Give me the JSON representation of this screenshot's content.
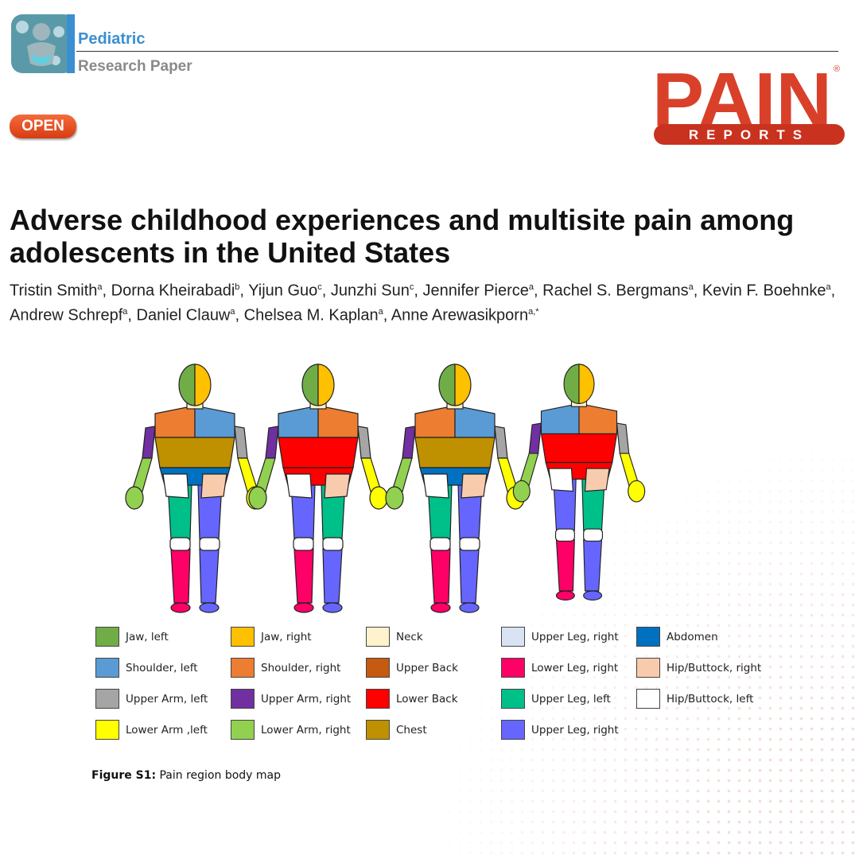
{
  "header": {
    "journal_name": "Pediatric",
    "journal_subtitle": "Research Paper",
    "open_badge": "OPEN",
    "logo": {
      "word": "PAIN",
      "ribbon": "REPORTS",
      "mark": "®"
    },
    "icons": [
      "pediatric-baby-icon"
    ]
  },
  "article": {
    "title": "Adverse childhood experiences and multisite pain among adolescents in the United States",
    "authors": [
      {
        "name": "Tristin Smith",
        "aff": "a"
      },
      {
        "name": "Dorna Kheirabadi",
        "aff": "b"
      },
      {
        "name": "Yijun Guo",
        "aff": "c"
      },
      {
        "name": "Junzhi Sun",
        "aff": "c"
      },
      {
        "name": "Jennifer Pierce",
        "aff": "a"
      },
      {
        "name": "Rachel S. Bergmans",
        "aff": "a"
      },
      {
        "name": "Kevin F. Boehnke",
        "aff": "a"
      },
      {
        "name": "Andrew Schrepf",
        "aff": "a"
      },
      {
        "name": "Daniel Clauw",
        "aff": "a"
      },
      {
        "name": "Chelsea M. Kaplan",
        "aff": "a"
      },
      {
        "name": "Anne Arewasikporn",
        "aff": "a,*"
      }
    ]
  },
  "figure": {
    "caption_label": "Figure S1:",
    "caption_text": " Pain region body map",
    "legend": [
      {
        "label": "Jaw, left",
        "color": "#70ad47"
      },
      {
        "label": "Jaw, right",
        "color": "#ffc000"
      },
      {
        "label": "Neck",
        "color": "#fff2cc"
      },
      {
        "label": "Upper Leg, right",
        "color": "#dae3f3"
      },
      {
        "label": "Abdomen",
        "color": "#0070c0"
      },
      {
        "label": "Shoulder, left",
        "color": "#5b9bd5"
      },
      {
        "label": "Shoulder, right",
        "color": "#ed7d31"
      },
      {
        "label": "Upper Back",
        "color": "#c55a11"
      },
      {
        "label": "Lower Leg, right",
        "color": "#ff0066"
      },
      {
        "label": "Hip/Buttock, right",
        "color": "#f8cbad"
      },
      {
        "label": "Upper Arm, left",
        "color": "#a5a5a5"
      },
      {
        "label": "Upper Arm, right",
        "color": "#7030a0"
      },
      {
        "label": "Lower Back",
        "color": "#ff0000"
      },
      {
        "label": "Upper Leg, left",
        "color": "#00c08a"
      },
      {
        "label": "Hip/Buttock, left",
        "color": "#ffffff"
      },
      {
        "label": "Lower Arm ,left",
        "color": "#ffff00"
      },
      {
        "label": "Lower Arm, right",
        "color": "#92d050"
      },
      {
        "label": "Chest",
        "color": "#bf9000"
      },
      {
        "label": "Upper Leg, right",
        "color": "#6666ff"
      }
    ]
  }
}
